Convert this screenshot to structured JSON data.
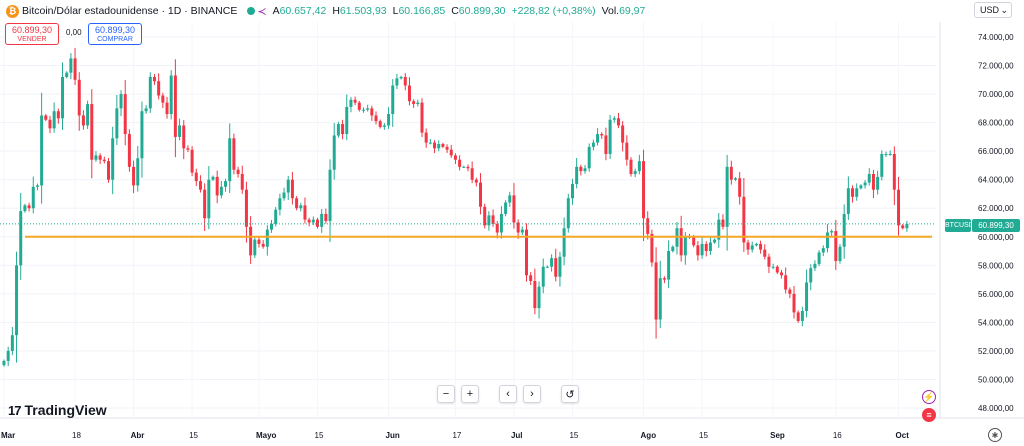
{
  "header": {
    "title": "Bitcoin/Dólar estadounidense · 1D · BINANCE",
    "open_label": "A",
    "open": "60.657,42",
    "high_label": "H",
    "high": "61.503,93",
    "low_label": "L",
    "low": "60.166,85",
    "close_label": "C",
    "close": "60.899,30",
    "change": "+228,82 (+0,38%)",
    "vol_label": "Vol.",
    "vol": "69,97"
  },
  "currency": "USD",
  "sell": {
    "price": "60.899,30",
    "label": "VENDER"
  },
  "buy": {
    "price": "60.899,30",
    "label": "COMPRAR"
  },
  "spread": "0,00",
  "branding": "TradingView",
  "symbol_tag": "BTCUSD",
  "last_price_tag": "60.899,30",
  "toolbar": {
    "zoom_out": "−",
    "zoom_in": "+",
    "scroll_left": "‹",
    "scroll_right": "›",
    "reset": "↺"
  },
  "colors": {
    "up": "#22ab94",
    "down": "#f23645",
    "support_line": "#f5a623",
    "accent": "#2962ff"
  },
  "chart_data": {
    "type": "candlestick",
    "symbol": "BTCUSD",
    "interval": "1D",
    "ylim": [
      48000,
      75000
    ],
    "y_ticks": [
      "74.000,00",
      "72.000,00",
      "70.000,00",
      "68.000,00",
      "66.000,00",
      "64.000,00",
      "62.000,00",
      "60.000,00",
      "58.000,00",
      "56.000,00",
      "54.000,00",
      "52.000,00",
      "50.000,00",
      "48.000,00"
    ],
    "x_ticks": [
      {
        "label": "Mar",
        "bold": true,
        "day": 0
      },
      {
        "label": "18",
        "bold": false,
        "day": 17
      },
      {
        "label": "Abr",
        "bold": true,
        "day": 31
      },
      {
        "label": "15",
        "bold": false,
        "day": 45
      },
      {
        "label": "Mayo",
        "bold": true,
        "day": 61
      },
      {
        "label": "15",
        "bold": false,
        "day": 75
      },
      {
        "label": "Jun",
        "bold": true,
        "day": 92
      },
      {
        "label": "17",
        "bold": false,
        "day": 108
      },
      {
        "label": "Jul",
        "bold": true,
        "day": 122
      },
      {
        "label": "15",
        "bold": false,
        "day": 136
      },
      {
        "label": "Ago",
        "bold": true,
        "day": 153
      },
      {
        "label": "15",
        "bold": false,
        "day": 167
      },
      {
        "label": "Sep",
        "bold": true,
        "day": 184
      },
      {
        "label": "16",
        "bold": false,
        "day": 199
      },
      {
        "label": "Oct",
        "bold": true,
        "day": 214
      }
    ],
    "support_level": 60000,
    "last_price": 60899.3,
    "dotted_level": 60899.3,
    "closes": [
      51300,
      52000,
      53100,
      58000,
      61800,
      62200,
      62000,
      63500,
      63600,
      68500,
      68200,
      67600,
      68800,
      68300,
      71200,
      71500,
      72500,
      71000,
      68500,
      67800,
      69300,
      65400,
      65700,
      65400,
      65300,
      64000,
      66900,
      69000,
      70000,
      67200,
      64900,
      63600,
      65500,
      68800,
      69000,
      71200,
      70900,
      69900,
      69400,
      68600,
      71300,
      67000,
      67800,
      66200,
      66100,
      64500,
      63900,
      63300,
      61300,
      64000,
      64200,
      62900,
      63500,
      63900,
      66900,
      64700,
      64400,
      63300,
      60700,
      58700,
      59800,
      59500,
      59300,
      60500,
      60900,
      61900,
      62700,
      63100,
      64000,
      62700,
      62000,
      62200,
      61200,
      61000,
      61200,
      60700,
      61600,
      61100,
      64700,
      67100,
      67900,
      67200,
      69100,
      69600,
      69400,
      68900,
      68900,
      69000,
      68500,
      68100,
      67700,
      67800,
      68600,
      70600,
      71100,
      71200,
      70600,
      69500,
      69300,
      69400,
      67300,
      66600,
      66600,
      66200,
      66500,
      66300,
      66100,
      65700,
      65400,
      64900,
      64900,
      64800,
      64000,
      63800,
      62100,
      60800,
      61500,
      60900,
      60300,
      61600,
      62400,
      62900,
      61000,
      60300,
      60500,
      57300,
      56900,
      55000,
      56500,
      57900,
      57900,
      58500,
      57200,
      58600,
      60600,
      62700,
      63700,
      64900,
      64600,
      64800,
      66300,
      66600,
      67200,
      67100,
      65800,
      68200,
      68300,
      67800,
      66600,
      65400,
      64400,
      64600,
      65300,
      61300,
      60200,
      58200,
      54200,
      57100,
      57000,
      59000,
      59300,
      60600,
      58700,
      60000,
      60000,
      59400,
      58700,
      59500,
      59000,
      59600,
      59800,
      61200,
      60700,
      64900,
      64000,
      64100,
      62800,
      59600,
      59100,
      59400,
      59500,
      59100,
      58600,
      57900,
      57900,
      57500,
      57300,
      56300,
      56000,
      54700,
      54100,
      54800,
      56800,
      57800,
      58100,
      58900,
      59200,
      60300,
      60400,
      58300,
      59300,
      61600,
      63400,
      62800,
      63400,
      63600,
      63800,
      64400,
      63300,
      64200,
      65800,
      65800,
      65800,
      63300,
      60800,
      60600,
      60900
    ]
  }
}
